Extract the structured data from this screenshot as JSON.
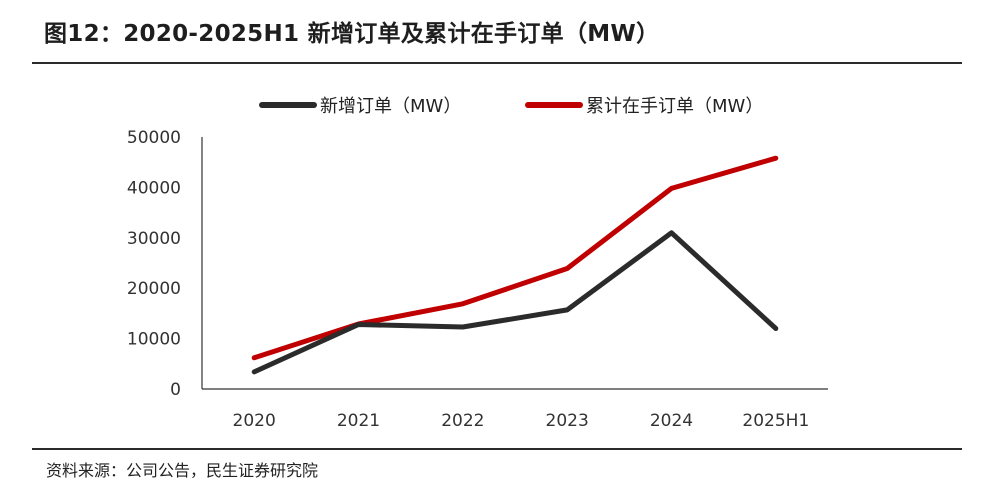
{
  "header": {
    "title": "图12：2020-2025H1 新增订单及累计在手订单（MW）"
  },
  "footer": {
    "source": "资料来源：公司公告，民生证券研究院"
  },
  "colors": {
    "series_new": "#2b2b2b",
    "series_cumulative": "#c00000",
    "axis": "#333333",
    "rule": "#2b2b2b"
  },
  "chart_data": {
    "type": "line",
    "categories": [
      "2020",
      "2021",
      "2022",
      "2023",
      "2024",
      "2025H1"
    ],
    "series": [
      {
        "name": "新增订单（MW）",
        "values": [
          3400,
          12800,
          12300,
          15700,
          31000,
          12000
        ]
      },
      {
        "name": "累计在手订单（MW）",
        "values": [
          6200,
          12900,
          16900,
          23900,
          39800,
          45800
        ]
      }
    ],
    "yticks": [
      "0",
      "10000",
      "20000",
      "30000",
      "40000",
      "50000"
    ],
    "ylim": [
      0,
      50000
    ],
    "grid": false,
    "legend_position": "top-center",
    "xlabel": "",
    "ylabel": ""
  }
}
